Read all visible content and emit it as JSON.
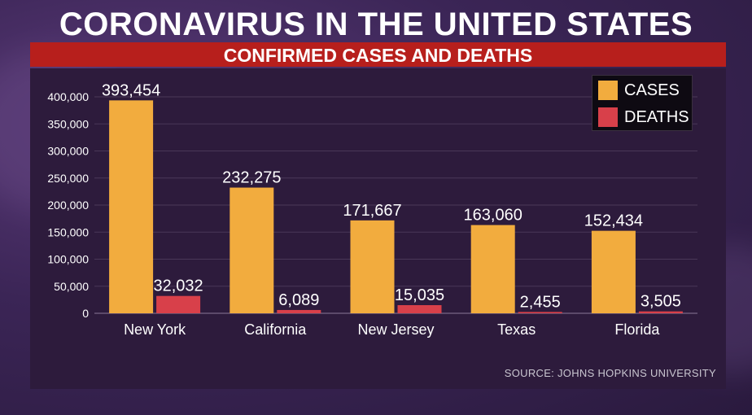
{
  "header": {
    "title": "CORONAVIRUS IN THE UNITED STATES",
    "subtitle": "CONFIRMED CASES AND DEATHS"
  },
  "source": "SOURCE: JOHNS HOPKINS UNIVERSITY",
  "colors": {
    "cases": "#f2ac3e",
    "deaths": "#d8404a",
    "subtitle_bar": "#b71f1c",
    "panel": "#2d1b3c"
  },
  "chart_data": {
    "type": "bar",
    "categories": [
      "New York",
      "California",
      "New Jersey",
      "Texas",
      "Florida"
    ],
    "series": [
      {
        "name": "CASES",
        "values": [
          393454,
          232275,
          171667,
          163060,
          152434
        ],
        "labels": [
          "393,454",
          "232,275",
          "171,667",
          "163,060",
          "152,434"
        ]
      },
      {
        "name": "DEATHS",
        "values": [
          32032,
          6089,
          15035,
          2455,
          3505
        ],
        "labels": [
          "32,032",
          "6,089",
          "15,035",
          "2,455",
          "3,505"
        ]
      }
    ],
    "ylim": [
      0,
      400000
    ],
    "yticks": [
      0,
      50000,
      100000,
      150000,
      200000,
      250000,
      300000,
      350000,
      400000
    ],
    "ytick_labels": [
      "0",
      "50,000",
      "100,000",
      "150,000",
      "200,000",
      "250,000",
      "300,000",
      "350,000",
      "400,000"
    ],
    "grid": true,
    "legend_position": "top-right"
  }
}
